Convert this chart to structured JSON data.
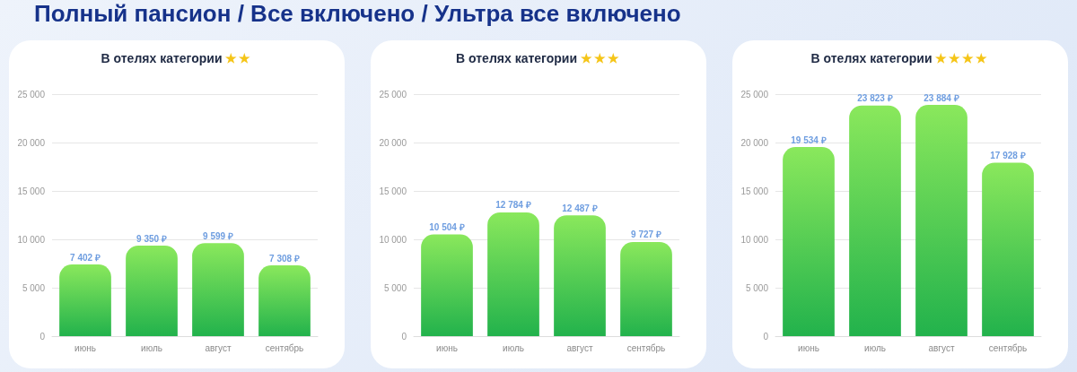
{
  "chart_data": [
    {
      "type": "bar",
      "title": "Полный пансион / Все включено / Ультра все включено",
      "subtitle": "В отелях категории ★★",
      "categories": [
        "июнь",
        "июль",
        "август",
        "сентябрь"
      ],
      "values": [
        7402,
        9350,
        9599,
        7308
      ],
      "value_labels": [
        "7 402 ₽",
        "9 350 ₽",
        "9 599 ₽",
        "7 308 ₽"
      ],
      "color": "#22b24c",
      "ylim": [
        0,
        25000
      ],
      "yticks": [
        {
          "value": 0,
          "label": "0"
        },
        {
          "value": 5000,
          "label": "5 000"
        },
        {
          "value": 10000,
          "label": "10 000"
        },
        {
          "value": 15000,
          "label": "15 000"
        },
        {
          "value": 20000,
          "label": "20 000"
        },
        {
          "value": 25000,
          "label": "25 000"
        }
      ],
      "grid": "y"
    },
    {
      "type": "bar",
      "subtitle": "В отелях категории ★★★",
      "categories": [
        "июнь",
        "июль",
        "август",
        "сентябрь"
      ],
      "values": [
        10504,
        12784,
        12487,
        9727
      ],
      "value_labels": [
        "10 504 ₽",
        "12 784 ₽",
        "12 487 ₽",
        "9 727 ₽"
      ],
      "color": "#22b24c",
      "ylim": [
        0,
        25000
      ],
      "yticks": [
        {
          "value": 0,
          "label": "0"
        },
        {
          "value": 5000,
          "label": "5 000"
        },
        {
          "value": 10000,
          "label": "10 000"
        },
        {
          "value": 15000,
          "label": "15 000"
        },
        {
          "value": 20000,
          "label": "20 000"
        },
        {
          "value": 25000,
          "label": "25 000"
        }
      ],
      "grid": "y"
    },
    {
      "type": "bar",
      "subtitle": "В отелях категории ★★★★",
      "categories": [
        "июнь",
        "июль",
        "август",
        "сентябрь"
      ],
      "values": [
        19534,
        23823,
        23884,
        17928
      ],
      "value_labels": [
        "19 534 ₽",
        "23 823 ₽",
        "23 884 ₽",
        "17 928 ₽"
      ],
      "color": "#22b24c",
      "ylim": [
        0,
        25000
      ],
      "yticks": [
        {
          "value": 0,
          "label": "0"
        },
        {
          "value": 5000,
          "label": "5 000"
        },
        {
          "value": 10000,
          "label": "10 000"
        },
        {
          "value": 15000,
          "label": "15 000"
        },
        {
          "value": 20000,
          "label": "20 000"
        },
        {
          "value": 25000,
          "label": "25 000"
        }
      ],
      "grid": "y"
    }
  ]
}
